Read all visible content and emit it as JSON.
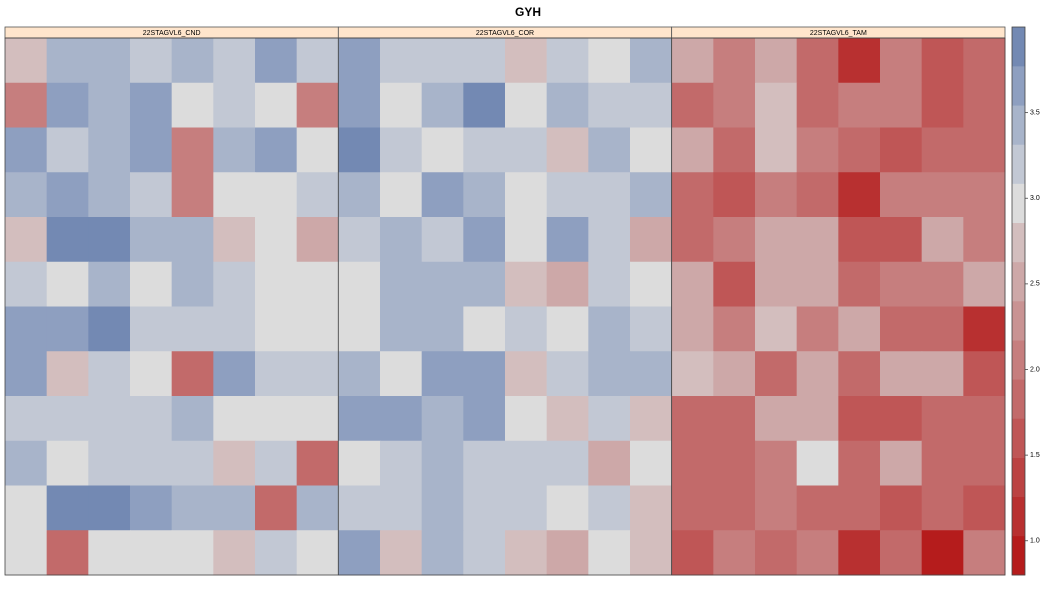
{
  "chart_data": {
    "type": "heatmap",
    "title": "GYH",
    "zlim": [
      0.8,
      4.0
    ],
    "zticks": [
      {
        "value": 1,
        "label": "1.0"
      },
      1.5,
      {
        "value": 2,
        "label": "2.0"
      },
      2.5,
      {
        "value": 3,
        "label": "3.0"
      },
      3.5
    ],
    "palette": [
      "#b51c1c",
      "#b83030",
      "#bb4343",
      "#bf5656",
      "#c26a6a",
      "#c67e7e",
      "#c99393",
      "#cda8a8",
      "#d3bebe",
      "#dcdcdc",
      "#c2c8d4",
      "#a8b4ca",
      "#8e9fc0",
      "#7389b3"
    ],
    "panels": [
      {
        "name": "22STAGVL6_CND",
        "values": [
          [
            2.75,
            3.4,
            3.4,
            3.2,
            3.4,
            3.2,
            3.65,
            3.2
          ],
          [
            2.05,
            3.65,
            3.4,
            3.65,
            3.0,
            3.2,
            3.0,
            2.05
          ],
          [
            3.65,
            3.2,
            3.4,
            3.65,
            2.05,
            3.4,
            3.65,
            3.0
          ],
          [
            3.4,
            3.65,
            3.4,
            3.2,
            2.05,
            3.0,
            3.0,
            3.2
          ],
          [
            2.75,
            3.85,
            3.85,
            3.4,
            3.4,
            2.75,
            3.0,
            2.5
          ],
          [
            3.2,
            3.0,
            3.4,
            3.0,
            3.4,
            3.2,
            3.0,
            3.0
          ],
          [
            3.65,
            3.65,
            3.85,
            3.2,
            3.2,
            3.2,
            3.0,
            3.0
          ],
          [
            3.65,
            2.75,
            3.2,
            3.0,
            1.85,
            3.65,
            3.2,
            3.2
          ],
          [
            3.2,
            3.2,
            3.2,
            3.2,
            3.4,
            3.0,
            3.0,
            3.0
          ],
          [
            3.4,
            3.0,
            3.2,
            3.2,
            3.2,
            2.75,
            3.2,
            1.85
          ],
          [
            3.0,
            3.85,
            3.85,
            3.65,
            3.4,
            3.4,
            1.85,
            3.4
          ],
          [
            3.0,
            1.9,
            3.0,
            3.0,
            3.0,
            2.75,
            3.2,
            3.0
          ]
        ]
      },
      {
        "name": "22STAGVL6_COR",
        "values": [
          [
            3.65,
            3.2,
            3.2,
            3.2,
            2.75,
            3.2,
            3.0,
            3.4
          ],
          [
            3.65,
            3.0,
            3.4,
            3.85,
            3.0,
            3.4,
            3.2,
            3.2
          ],
          [
            3.85,
            3.2,
            3.0,
            3.2,
            3.2,
            2.75,
            3.4,
            3.0
          ],
          [
            3.4,
            3.0,
            3.65,
            3.4,
            3.0,
            3.2,
            3.2,
            3.4
          ],
          [
            3.2,
            3.4,
            3.2,
            3.65,
            3.0,
            3.65,
            3.2,
            2.5
          ],
          [
            3.0,
            3.4,
            3.4,
            3.4,
            2.75,
            2.5,
            3.2,
            3.0
          ],
          [
            3.0,
            3.4,
            3.4,
            3.0,
            3.2,
            3.0,
            3.4,
            3.2
          ],
          [
            3.4,
            3.0,
            3.65,
            3.65,
            2.75,
            3.2,
            3.4,
            3.4
          ],
          [
            3.65,
            3.65,
            3.4,
            3.65,
            3.0,
            2.75,
            3.2,
            2.75
          ],
          [
            3.0,
            3.2,
            3.4,
            3.2,
            3.2,
            3.2,
            2.5,
            3.0
          ],
          [
            3.2,
            3.2,
            3.4,
            3.2,
            3.2,
            3.0,
            3.2,
            2.75
          ],
          [
            3.65,
            2.75,
            3.4,
            3.2,
            2.75,
            2.5,
            3.0,
            2.75
          ]
        ]
      },
      {
        "name": "22STAGVL6_TAM",
        "values": [
          [
            2.5,
            2.05,
            2.5,
            1.85,
            1.15,
            2.05,
            1.6,
            1.85
          ],
          [
            1.85,
            2.05,
            2.75,
            1.85,
            2.05,
            2.05,
            1.6,
            1.85
          ],
          [
            2.5,
            1.85,
            2.75,
            2.05,
            1.85,
            1.6,
            1.85,
            1.85
          ],
          [
            1.85,
            1.6,
            2.05,
            1.85,
            1.15,
            2.05,
            2.05,
            2.05
          ],
          [
            1.85,
            2.05,
            2.5,
            2.5,
            1.6,
            1.6,
            2.5,
            2.05
          ],
          [
            2.5,
            1.6,
            2.5,
            2.5,
            1.85,
            2.05,
            2.05,
            2.5
          ],
          [
            2.5,
            2.05,
            2.75,
            2.05,
            2.5,
            1.85,
            1.85,
            1.15
          ],
          [
            2.75,
            2.5,
            1.85,
            2.5,
            1.85,
            2.5,
            2.5,
            1.6
          ],
          [
            1.85,
            1.85,
            2.5,
            2.5,
            1.6,
            1.6,
            1.85,
            1.85
          ],
          [
            1.85,
            1.85,
            2.05,
            3.0,
            1.85,
            2.5,
            1.85,
            1.85
          ],
          [
            1.85,
            1.85,
            2.05,
            1.85,
            1.85,
            1.6,
            1.85,
            1.6
          ],
          [
            1.6,
            2.05,
            1.85,
            2.05,
            1.15,
            1.85,
            0.9,
            2.05
          ]
        ]
      }
    ]
  }
}
